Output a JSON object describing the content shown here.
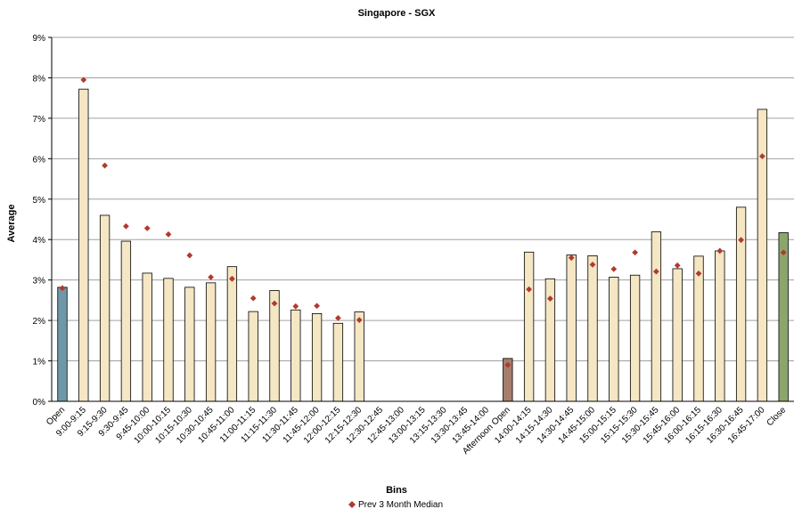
{
  "chart_data": {
    "type": "bar",
    "title": "Singapore - SGX",
    "xlabel": "Bins",
    "ylabel": "Average",
    "ylim": [
      0,
      9
    ],
    "y_tick_format": "percent",
    "y_ticks": [
      "0%",
      "1%",
      "2%",
      "3%",
      "4%",
      "5%",
      "6%",
      "7%",
      "8%",
      "9%"
    ],
    "grid": "horizontal",
    "legend_position": "bottom",
    "categories": [
      "Open",
      "9:00-9:15",
      "9:15-9:30",
      "9:30-9:45",
      "9:45-10:00",
      "10:00-10:15",
      "10:15-10:30",
      "10:30-10:45",
      "10:45-11:00",
      "11:00-11:15",
      "11:15-11:30",
      "11:30-11:45",
      "11:45-12:00",
      "12:00-12:15",
      "12:15-12:30",
      "12:30-12:45",
      "12:45-13:00",
      "13:00-13:15",
      "13:15-13:30",
      "13:30-13:45",
      "13:45-14:00",
      "Afternoon Open",
      "14:00-14:15",
      "14:15-14:30",
      "14:30-14:45",
      "14:45-15:00",
      "15:00-15:15",
      "15:15-15:30",
      "15:30-15:45",
      "15:45-16:00",
      "16:00-16:15",
      "16:15-16:30",
      "16:30-16:45",
      "16:45-17:00",
      "Close"
    ],
    "series": [
      {
        "name": "",
        "kind": "bar",
        "values": [
          2.82,
          7.72,
          4.6,
          3.96,
          3.17,
          3.04,
          2.82,
          2.93,
          3.33,
          2.22,
          2.74,
          2.26,
          2.17,
          1.93,
          2.21,
          null,
          null,
          null,
          null,
          null,
          null,
          1.06,
          3.69,
          3.03,
          3.62,
          3.6,
          3.07,
          3.12,
          4.19,
          3.28,
          3.59,
          3.72,
          4.8,
          7.22,
          4.17
        ]
      },
      {
        "name": "Prev 3 Month Median",
        "kind": "marker",
        "values": [
          2.8,
          7.95,
          5.83,
          4.33,
          4.28,
          4.13,
          3.61,
          3.07,
          3.03,
          2.55,
          2.42,
          2.35,
          2.36,
          2.06,
          2.01,
          null,
          null,
          null,
          null,
          null,
          null,
          0.9,
          2.77,
          2.54,
          3.55,
          3.38,
          3.27,
          3.68,
          3.21,
          3.36,
          3.16,
          3.72,
          3.99,
          6.06,
          3.68
        ]
      }
    ],
    "colors": {
      "bar_default": "#f5e6c4",
      "bar_open": "#6f97a8",
      "bar_afternoon_open": "#a57e6c",
      "bar_close": "#8aa66b",
      "bar_stroke": "#000000",
      "marker": "#b03a2e",
      "grid": "#a0a0a0"
    }
  }
}
